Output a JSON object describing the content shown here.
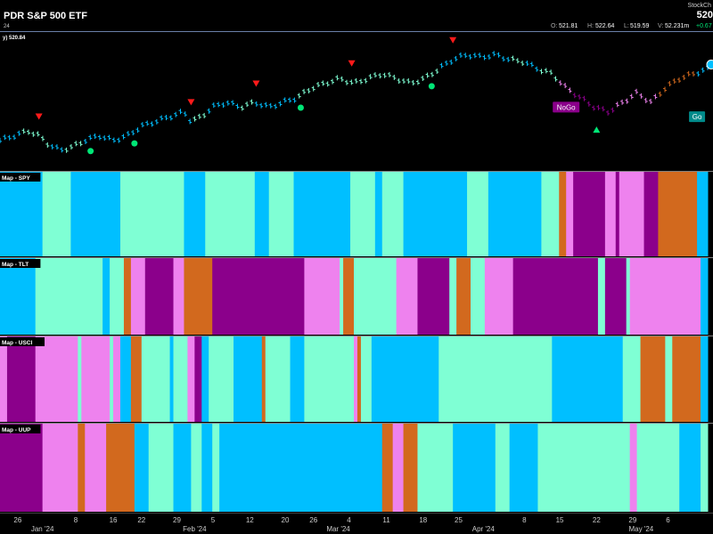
{
  "header": {
    "title": "PDR S&P 500 ETF",
    "subtitle": "24",
    "logo_text": "StockCh",
    "last_price": "520",
    "ohlc": {
      "o_label": "O:",
      "o": "521.81",
      "h_label": "H:",
      "h": "522.64",
      "l_label": "L:",
      "l": "519.59",
      "v_label": "V:",
      "v": "52.231m",
      "change": "+0.67"
    },
    "price_tag": "y) 520.84"
  },
  "colors": {
    "go_strong": "#00bfff",
    "go_weak": "#7fffd4",
    "nogo_strong": "#8b008b",
    "nogo_weak": "#ee82ee",
    "neutral": "#d2691e",
    "triangle_down": "#ff1a1a",
    "triangle_up": "#00e676",
    "dot": "#00e676"
  },
  "chart_data": {
    "type": "heatmap",
    "x_axis": {
      "day_ticks": [
        {
          "label": "26",
          "pos": 0.025
        },
        {
          "label": "8",
          "pos": 0.107
        },
        {
          "label": "16",
          "pos": 0.16
        },
        {
          "label": "22",
          "pos": 0.2
        },
        {
          "label": "29",
          "pos": 0.25
        },
        {
          "label": "5",
          "pos": 0.301
        },
        {
          "label": "12",
          "pos": 0.353
        },
        {
          "label": "20",
          "pos": 0.403
        },
        {
          "label": "26",
          "pos": 0.443
        },
        {
          "label": "4",
          "pos": 0.493
        },
        {
          "label": "11",
          "pos": 0.546
        },
        {
          "label": "18",
          "pos": 0.598
        },
        {
          "label": "25",
          "pos": 0.648
        },
        {
          "label": "8",
          "pos": 0.741
        },
        {
          "label": "15",
          "pos": 0.791
        },
        {
          "label": "22",
          "pos": 0.843
        },
        {
          "label": "29",
          "pos": 0.894
        },
        {
          "label": "6",
          "pos": 0.944
        }
      ],
      "month_ticks": [
        {
          "label": "Jan '24",
          "pos": 0.06
        },
        {
          "label": "Feb '24",
          "pos": 0.275
        },
        {
          "label": "Mar '24",
          "pos": 0.478
        },
        {
          "label": "Apr '24",
          "pos": 0.683
        },
        {
          "label": "May '24",
          "pos": 0.906
        }
      ]
    },
    "price_panel": {
      "labels": [
        {
          "text": "NoGo",
          "bg": "#8b008b",
          "fg": "#ffffff",
          "pos": 0.8,
          "price": 516
        },
        {
          "text": "Go",
          "bg": "#008b8b",
          "fg": "#ffffff",
          "pos": 0.985,
          "price": 514
        }
      ],
      "segments": [
        {
          "from": 0.0,
          "to": 0.03,
          "color": "go_strong"
        },
        {
          "from": 0.03,
          "to": 0.07,
          "color": "go_weak"
        },
        {
          "from": 0.07,
          "to": 0.09,
          "color": "go_strong"
        },
        {
          "from": 0.09,
          "to": 0.12,
          "color": "go_weak"
        },
        {
          "from": 0.12,
          "to": 0.27,
          "color": "go_strong"
        },
        {
          "from": 0.27,
          "to": 0.29,
          "color": "go_weak"
        },
        {
          "from": 0.29,
          "to": 0.34,
          "color": "go_strong"
        },
        {
          "from": 0.34,
          "to": 0.36,
          "color": "go_weak"
        },
        {
          "from": 0.36,
          "to": 0.42,
          "color": "go_strong"
        },
        {
          "from": 0.42,
          "to": 0.47,
          "color": "go_weak"
        },
        {
          "from": 0.47,
          "to": 0.56,
          "color": "go_weak"
        },
        {
          "from": 0.56,
          "to": 0.62,
          "color": "go_weak"
        },
        {
          "from": 0.62,
          "to": 0.72,
          "color": "go_strong"
        },
        {
          "from": 0.72,
          "to": 0.74,
          "color": "go_weak"
        },
        {
          "from": 0.74,
          "to": 0.76,
          "color": "go_strong"
        },
        {
          "from": 0.76,
          "to": 0.79,
          "color": "go_weak"
        },
        {
          "from": 0.79,
          "to": 0.81,
          "color": "nogo_weak"
        },
        {
          "from": 0.81,
          "to": 0.87,
          "color": "nogo_strong"
        },
        {
          "from": 0.87,
          "to": 0.93,
          "color": "nogo_weak"
        },
        {
          "from": 0.93,
          "to": 0.98,
          "color": "neutral"
        },
        {
          "from": 0.98,
          "to": 1.0,
          "color": "go_strong"
        }
      ],
      "price_points": [
        [
          0.0,
          509
        ],
        [
          0.02,
          510
        ],
        [
          0.04,
          511
        ],
        [
          0.055,
          510
        ],
        [
          0.07,
          508
        ],
        [
          0.085,
          507
        ],
        [
          0.1,
          507.5
        ],
        [
          0.12,
          509
        ],
        [
          0.14,
          510
        ],
        [
          0.16,
          509
        ],
        [
          0.18,
          510
        ],
        [
          0.2,
          512
        ],
        [
          0.22,
          513
        ],
        [
          0.24,
          514
        ],
        [
          0.26,
          515
        ],
        [
          0.27,
          513
        ],
        [
          0.285,
          514
        ],
        [
          0.3,
          516
        ],
        [
          0.32,
          517
        ],
        [
          0.34,
          516
        ],
        [
          0.36,
          517
        ],
        [
          0.38,
          516
        ],
        [
          0.4,
          517
        ],
        [
          0.42,
          518
        ],
        [
          0.44,
          520
        ],
        [
          0.46,
          521
        ],
        [
          0.48,
          522
        ],
        [
          0.5,
          521
        ],
        [
          0.52,
          522
        ],
        [
          0.54,
          523
        ],
        [
          0.56,
          522
        ],
        [
          0.58,
          521
        ],
        [
          0.6,
          522
        ],
        [
          0.62,
          524
        ],
        [
          0.64,
          526
        ],
        [
          0.66,
          527
        ],
        [
          0.68,
          526.5
        ],
        [
          0.7,
          527
        ],
        [
          0.72,
          526
        ],
        [
          0.74,
          525.5
        ],
        [
          0.76,
          524
        ],
        [
          0.78,
          523
        ],
        [
          0.8,
          520
        ],
        [
          0.82,
          518
        ],
        [
          0.84,
          516
        ],
        [
          0.86,
          515
        ],
        [
          0.88,
          517
        ],
        [
          0.9,
          519
        ],
        [
          0.92,
          517
        ],
        [
          0.94,
          520
        ],
        [
          0.96,
          522
        ],
        [
          0.98,
          523
        ],
        [
          1.0,
          524
        ]
      ],
      "price_range": [
        503,
        531
      ],
      "down_triangles": [
        0.055,
        0.27,
        0.362,
        0.497,
        0.64
      ],
      "up_triangles": [
        0.843
      ],
      "dots": [
        0.128,
        0.19,
        0.425,
        0.61
      ]
    },
    "heatmap_rows": [
      {
        "label": "Map - SPY",
        "bands": [
          [
            "go_strong",
            0.0,
            0.06
          ],
          [
            "go_weak",
            0.06,
            0.1
          ],
          [
            "go_strong",
            0.1,
            0.17
          ],
          [
            "go_weak",
            0.17,
            0.26
          ],
          [
            "go_strong",
            0.26,
            0.29
          ],
          [
            "go_weak",
            0.29,
            0.36
          ],
          [
            "go_strong",
            0.36,
            0.38
          ],
          [
            "go_weak",
            0.38,
            0.415
          ],
          [
            "go_strong",
            0.415,
            0.495
          ],
          [
            "go_weak",
            0.495,
            0.53
          ],
          [
            "go_strong",
            0.53,
            0.54
          ],
          [
            "go_weak",
            0.54,
            0.57
          ],
          [
            "go_strong",
            0.57,
            0.66
          ],
          [
            "go_weak",
            0.66,
            0.69
          ],
          [
            "go_strong",
            0.69,
            0.765
          ],
          [
            "go_weak",
            0.765,
            0.79
          ],
          [
            "neutral",
            0.79,
            0.8
          ],
          [
            "nogo_weak",
            0.8,
            0.81
          ],
          [
            "nogo_strong",
            0.81,
            0.855
          ],
          [
            "nogo_weak",
            0.855,
            0.87
          ],
          [
            "nogo_strong",
            0.87,
            0.875
          ],
          [
            "nogo_weak",
            0.875,
            0.91
          ],
          [
            "nogo_strong",
            0.91,
            0.93
          ],
          [
            "neutral",
            0.93,
            0.985
          ],
          [
            "go_strong",
            0.985,
            1.0
          ]
        ]
      },
      {
        "label": "Map - TLT",
        "bands": [
          [
            "go_strong",
            0.0,
            0.05
          ],
          [
            "go_weak",
            0.05,
            0.145
          ],
          [
            "go_strong",
            0.145,
            0.155
          ],
          [
            "go_weak",
            0.155,
            0.175
          ],
          [
            "neutral",
            0.175,
            0.185
          ],
          [
            "nogo_weak",
            0.185,
            0.205
          ],
          [
            "nogo_strong",
            0.205,
            0.245
          ],
          [
            "nogo_weak",
            0.245,
            0.26
          ],
          [
            "neutral",
            0.26,
            0.3
          ],
          [
            "nogo_strong",
            0.3,
            0.43
          ],
          [
            "nogo_weak",
            0.43,
            0.48
          ],
          [
            "go_weak",
            0.48,
            0.485
          ],
          [
            "neutral",
            0.485,
            0.5
          ],
          [
            "go_weak",
            0.5,
            0.56
          ],
          [
            "nogo_weak",
            0.56,
            0.59
          ],
          [
            "nogo_strong",
            0.59,
            0.635
          ],
          [
            "go_weak",
            0.635,
            0.645
          ],
          [
            "neutral",
            0.645,
            0.665
          ],
          [
            "go_weak",
            0.665,
            0.685
          ],
          [
            "nogo_weak",
            0.685,
            0.725
          ],
          [
            "nogo_strong",
            0.725,
            0.845
          ],
          [
            "go_weak",
            0.845,
            0.855
          ],
          [
            "nogo_strong",
            0.855,
            0.885
          ],
          [
            "go_weak",
            0.885,
            0.89
          ],
          [
            "nogo_weak",
            0.89,
            0.99
          ],
          [
            "go_strong",
            0.99,
            1.0
          ]
        ]
      },
      {
        "label": "Map - USCI",
        "bands": [
          [
            "nogo_weak",
            0.0,
            0.01
          ],
          [
            "nogo_strong",
            0.01,
            0.05
          ],
          [
            "nogo_weak",
            0.05,
            0.11
          ],
          [
            "go_weak",
            0.11,
            0.115
          ],
          [
            "nogo_weak",
            0.115,
            0.155
          ],
          [
            "go_weak",
            0.155,
            0.16
          ],
          [
            "nogo_weak",
            0.16,
            0.17
          ],
          [
            "go_strong",
            0.17,
            0.185
          ],
          [
            "neutral",
            0.185,
            0.2
          ],
          [
            "go_weak",
            0.2,
            0.24
          ],
          [
            "go_strong",
            0.24,
            0.245
          ],
          [
            "go_weak",
            0.245,
            0.265
          ],
          [
            "nogo_weak",
            0.265,
            0.275
          ],
          [
            "nogo_strong",
            0.275,
            0.285
          ],
          [
            "go_strong",
            0.285,
            0.295
          ],
          [
            "go_weak",
            0.295,
            0.33
          ],
          [
            "go_strong",
            0.33,
            0.37
          ],
          [
            "neutral",
            0.37,
            0.375
          ],
          [
            "go_weak",
            0.375,
            0.41
          ],
          [
            "go_strong",
            0.41,
            0.43
          ],
          [
            "go_weak",
            0.43,
            0.5
          ],
          [
            "nogo_weak",
            0.5,
            0.505
          ],
          [
            "neutral",
            0.505,
            0.51
          ],
          [
            "go_weak",
            0.51,
            0.525
          ],
          [
            "go_strong",
            0.525,
            0.62
          ],
          [
            "go_weak",
            0.62,
            0.78
          ],
          [
            "go_strong",
            0.78,
            0.88
          ],
          [
            "go_weak",
            0.88,
            0.905
          ],
          [
            "neutral",
            0.905,
            0.94
          ],
          [
            "go_weak",
            0.94,
            0.95
          ],
          [
            "neutral",
            0.95,
            0.99
          ],
          [
            "go_strong",
            0.99,
            1.0
          ]
        ]
      },
      {
        "label": "Map - UUP",
        "bands": [
          [
            "nogo_strong",
            0.0,
            0.06
          ],
          [
            "nogo_weak",
            0.06,
            0.11
          ],
          [
            "neutral",
            0.11,
            0.12
          ],
          [
            "nogo_weak",
            0.12,
            0.15
          ],
          [
            "neutral",
            0.15,
            0.19
          ],
          [
            "go_strong",
            0.19,
            0.21
          ],
          [
            "go_weak",
            0.21,
            0.245
          ],
          [
            "go_strong",
            0.245,
            0.27
          ],
          [
            "go_weak",
            0.27,
            0.285
          ],
          [
            "go_strong",
            0.285,
            0.3
          ],
          [
            "go_weak",
            0.3,
            0.31
          ],
          [
            "go_strong",
            0.31,
            0.54
          ],
          [
            "neutral",
            0.54,
            0.555
          ],
          [
            "nogo_weak",
            0.555,
            0.57
          ],
          [
            "neutral",
            0.57,
            0.59
          ],
          [
            "go_weak",
            0.59,
            0.64
          ],
          [
            "go_strong",
            0.64,
            0.7
          ],
          [
            "go_weak",
            0.7,
            0.72
          ],
          [
            "go_strong",
            0.72,
            0.76
          ],
          [
            "go_weak",
            0.76,
            0.89
          ],
          [
            "nogo_weak",
            0.89,
            0.9
          ],
          [
            "go_weak",
            0.9,
            0.96
          ],
          [
            "go_strong",
            0.96,
            0.99
          ],
          [
            "go_weak",
            0.99,
            1.0
          ]
        ]
      }
    ]
  }
}
